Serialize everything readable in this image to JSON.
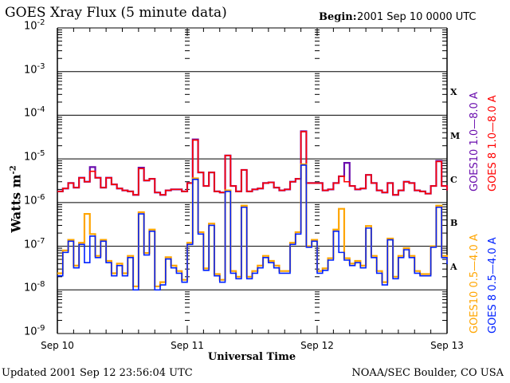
{
  "title": "GOES Xray Flux (5 minute data)",
  "begin_label": "Begin:",
  "begin_value": "2001 Sep 10 0000 UTC",
  "updated": "Updated 2001 Sep 12 23:56:04 UTC",
  "credit": "NOAA/SEC Boulder, CO USA",
  "chart_data": {
    "type": "line",
    "title": "GOES Xray Flux (5 minute data)",
    "xlabel": "Universal Time",
    "ylabel": "Watts m",
    "ylabel_sup": "-2",
    "y_scale": "log",
    "ylim": [
      1e-09,
      0.01
    ],
    "y_ticks": [
      {
        "base": "10",
        "exp": "-2"
      },
      {
        "base": "10",
        "exp": "-3"
      },
      {
        "base": "10",
        "exp": "-4"
      },
      {
        "base": "10",
        "exp": "-5"
      },
      {
        "base": "10",
        "exp": "-6"
      },
      {
        "base": "10",
        "exp": "-7"
      },
      {
        "base": "10",
        "exp": "-8"
      },
      {
        "base": "10",
        "exp": "-9"
      }
    ],
    "x_ticks": [
      "Sep 10",
      "Sep 11",
      "Sep 12",
      "Sep 13"
    ],
    "xlim": [
      "2001-09-10 00:00",
      "2001-09-13 00:00"
    ],
    "grid": "horizontal lines at 1e-8 through 1e-3",
    "flare_classes": [
      "X",
      "M",
      "C",
      "B",
      "A"
    ],
    "times": [
      "09-10 00:00",
      "09-10 01:00",
      "09-10 02:00",
      "09-10 03:00",
      "09-10 04:00",
      "09-10 05:00",
      "09-10 06:00",
      "09-10 07:00",
      "09-10 08:00",
      "09-10 09:00",
      "09-10 10:00",
      "09-10 11:00",
      "09-10 12:00",
      "09-10 13:00",
      "09-10 14:00",
      "09-10 15:00",
      "09-10 16:00",
      "09-10 17:00",
      "09-10 18:00",
      "09-10 19:00",
      "09-10 20:00",
      "09-10 21:00",
      "09-10 22:00",
      "09-10 23:00",
      "09-11 00:00",
      "09-11 01:00",
      "09-11 02:00",
      "09-11 03:00",
      "09-11 04:00",
      "09-11 05:00",
      "09-11 06:00",
      "09-11 07:00",
      "09-11 08:00",
      "09-11 09:00",
      "09-11 10:00",
      "09-11 11:00",
      "09-11 12:00",
      "09-11 13:00",
      "09-11 14:00",
      "09-11 15:00",
      "09-11 16:00",
      "09-11 17:00",
      "09-11 18:00",
      "09-11 19:00",
      "09-11 20:00",
      "09-11 21:00",
      "09-11 22:00",
      "09-11 23:00",
      "09-12 00:00",
      "09-12 01:00",
      "09-12 02:00",
      "09-12 03:00",
      "09-12 04:00",
      "09-12 05:00",
      "09-12 06:00",
      "09-12 07:00",
      "09-12 08:00",
      "09-12 09:00",
      "09-12 10:00",
      "09-12 11:00",
      "09-12 12:00",
      "09-12 13:00",
      "09-12 14:00",
      "09-12 15:00",
      "09-12 16:00",
      "09-12 17:00",
      "09-12 18:00",
      "09-12 19:00",
      "09-12 20:00",
      "09-12 21:00",
      "09-12 22:00",
      "09-12 23:00",
      "09-13 00:00"
    ],
    "series": [
      {
        "name": "GOES10 1.0--8.0 A",
        "color": "#6a0dad",
        "values": [
          1.8e-06,
          2.1e-06,
          2.8e-06,
          2.2e-06,
          3.7e-06,
          3e-06,
          6.5e-06,
          3.7e-06,
          2.2e-06,
          3.7e-06,
          2.6e-06,
          2.1e-06,
          1.9e-06,
          1.8e-06,
          1.5e-06,
          6.3e-06,
          3.2e-06,
          3.5e-06,
          1.7e-06,
          1.5e-06,
          1.9e-06,
          2e-06,
          2e-06,
          1.8e-06,
          2.8e-06,
          2.8e-05,
          4.9e-06,
          2.4e-06,
          4.9e-06,
          1.8e-06,
          1.7e-06,
          1.2e-05,
          2.4e-06,
          1.8e-06,
          5.6e-06,
          1.8e-06,
          2e-06,
          2.1e-06,
          2.8e-06,
          2.9e-06,
          2.2e-06,
          1.9e-06,
          2e-06,
          3e-06,
          3.5e-06,
          4.3e-05,
          2.8e-06,
          2.8e-06,
          2.8e-06,
          1.9e-06,
          2e-06,
          2.8e-06,
          4e-06,
          8.1e-06,
          2.4e-06,
          2e-06,
          2.1e-06,
          4.3e-06,
          2.8e-06,
          1.9e-06,
          1.7e-06,
          2.8e-06,
          1.5e-06,
          1.9e-06,
          3e-06,
          2.8e-06,
          1.9e-06,
          1.8e-06,
          1.6e-06,
          2.4e-06,
          9e-06,
          2.4e-06,
          1.9e-06
        ]
      },
      {
        "name": "GOES 8 1.0--8.0 A",
        "color": "#ff0000",
        "values": [
          1.8e-06,
          2.1e-06,
          2.8e-06,
          2.2e-06,
          3.7e-06,
          3e-06,
          5.2e-06,
          3.7e-06,
          2.2e-06,
          3.7e-06,
          2.6e-06,
          2.1e-06,
          1.9e-06,
          1.8e-06,
          1.5e-06,
          6e-06,
          3.2e-06,
          3.5e-06,
          1.7e-06,
          1.5e-06,
          1.9e-06,
          2e-06,
          2e-06,
          1.8e-06,
          2.8e-06,
          2.7e-05,
          4.9e-06,
          2.4e-06,
          4.9e-06,
          1.8e-06,
          1.7e-06,
          1.2e-05,
          2.4e-06,
          1.8e-06,
          5.6e-06,
          1.8e-06,
          2e-06,
          2.1e-06,
          2.8e-06,
          2.9e-06,
          2.2e-06,
          1.9e-06,
          2e-06,
          3e-06,
          3.5e-06,
          4.2e-05,
          2.8e-06,
          2.8e-06,
          2.8e-06,
          1.9e-06,
          2e-06,
          2.8e-06,
          4e-06,
          3e-06,
          2.4e-06,
          2e-06,
          2.1e-06,
          4.3e-06,
          2.8e-06,
          1.9e-06,
          1.7e-06,
          2.8e-06,
          1.5e-06,
          1.9e-06,
          3e-06,
          2.8e-06,
          1.9e-06,
          1.8e-06,
          1.6e-06,
          2.4e-06,
          8.7e-06,
          2.4e-06,
          1.9e-06
        ]
      },
      {
        "name": "GOES10 0.5--4.0 A",
        "color": "#ffa500",
        "values": [
          2.4e-08,
          8e-08,
          1.4e-07,
          3.6e-08,
          1.2e-07,
          5.5e-07,
          1.9e-07,
          6e-08,
          1.4e-07,
          4.6e-08,
          2.4e-08,
          4e-08,
          2.4e-08,
          6e-08,
          1.2e-08,
          6e-07,
          7e-08,
          2.4e-07,
          1.2e-08,
          1.5e-08,
          5.6e-08,
          3.6e-08,
          2.7e-08,
          1.7e-08,
          1.2e-07,
          3.6e-06,
          2.1e-07,
          3.1e-08,
          3.3e-07,
          2.3e-08,
          1.7e-08,
          1.9e-06,
          2.7e-08,
          2e-08,
          8.5e-07,
          2e-08,
          2.7e-08,
          3.6e-08,
          6e-08,
          4.6e-08,
          3.6e-08,
          2.7e-08,
          2.7e-08,
          1.2e-07,
          2.1e-07,
          7.5e-06,
          1e-07,
          1.4e-07,
          2.7e-08,
          3.1e-08,
          5.3e-08,
          2.4e-07,
          7.2e-07,
          5.3e-08,
          4e-08,
          4.6e-08,
          3.6e-08,
          2.9e-07,
          6e-08,
          2.7e-08,
          1.5e-08,
          1.5e-07,
          2e-08,
          6e-08,
          9e-08,
          6e-08,
          2.7e-08,
          2.3e-08,
          2.3e-08,
          1e-07,
          8.5e-07,
          6e-08,
          4.3e-08
        ]
      },
      {
        "name": "GOES 8 0.5--4.0 A",
        "color": "#0022ff",
        "values": [
          2.1e-08,
          7.2e-08,
          1.3e-07,
          3.2e-08,
          1.1e-07,
          4.2e-08,
          1.7e-07,
          5.5e-08,
          1.3e-07,
          4.2e-08,
          2.1e-08,
          3.6e-08,
          2.1e-08,
          5.5e-08,
          1e-08,
          5.5e-07,
          6.3e-08,
          2.2e-07,
          1e-08,
          1.3e-08,
          5.1e-08,
          3.2e-08,
          2.4e-08,
          1.5e-08,
          1.1e-07,
          3.4e-06,
          1.9e-07,
          2.8e-08,
          3e-07,
          2.1e-08,
          1.5e-08,
          1.8e-06,
          2.4e-08,
          1.8e-08,
          7.8e-07,
          1.8e-08,
          2.4e-08,
          3.2e-08,
          5.5e-08,
          4.2e-08,
          3.2e-08,
          2.4e-08,
          2.4e-08,
          1.1e-07,
          1.9e-07,
          7.2e-06,
          9.5e-08,
          1.3e-07,
          2.4e-08,
          2.8e-08,
          4.8e-08,
          2.2e-07,
          7.2e-08,
          4.8e-08,
          3.6e-08,
          4.2e-08,
          3.2e-08,
          2.6e-07,
          5.5e-08,
          2.4e-08,
          1.3e-08,
          1.4e-07,
          1.8e-08,
          5.5e-08,
          8.3e-08,
          5.5e-08,
          2.4e-08,
          2.1e-08,
          2.1e-08,
          9.5e-08,
          7.8e-07,
          5.5e-08,
          3.9e-08
        ]
      }
    ]
  },
  "legend": {
    "goes10_long": "GOES10 1.0—8.0 A",
    "goes8_long": "GOES 8 1.0—8.0 A",
    "goes10_short": "GOES10 0.5—4.0 A",
    "goes8_short": "GOES 8 0.5—4.0 A"
  }
}
